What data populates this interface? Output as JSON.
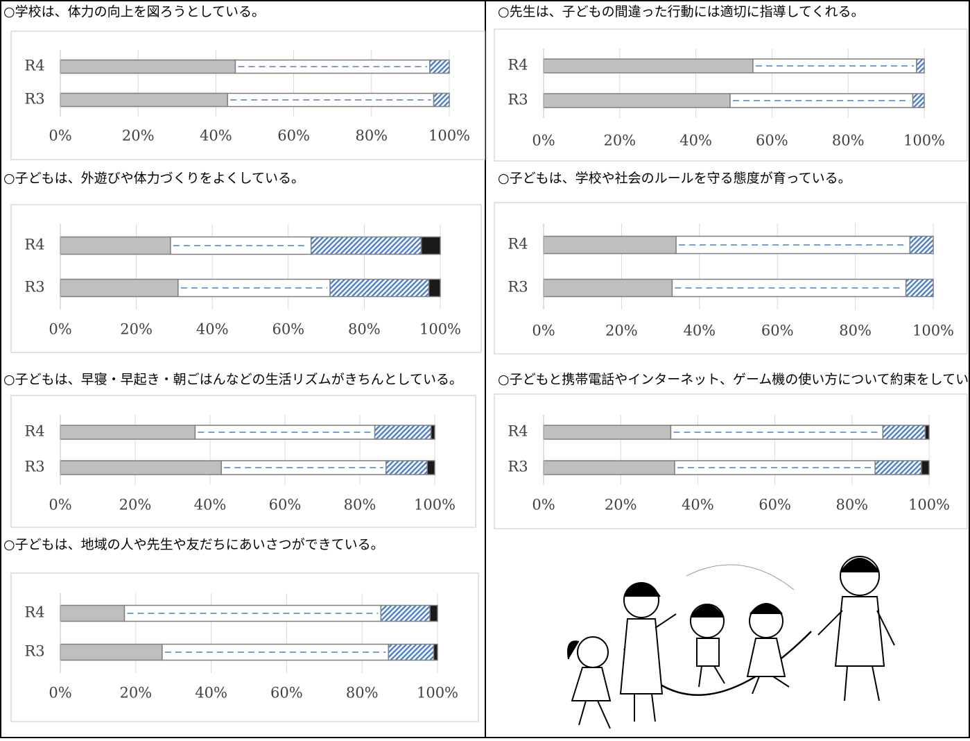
{
  "chart_data": [
    {
      "type": "stacked-bar-horizontal",
      "title": "○学校は、体力の向上を図ろうとしている。",
      "categories": [
        "R4",
        "R3"
      ],
      "series": [
        {
          "color": "#bfbfbf",
          "pattern": "solid",
          "values": [
            45,
            43
          ]
        },
        {
          "color": "#4a7ec9",
          "pattern": "dashed",
          "values": [
            50,
            53
          ]
        },
        {
          "color": "#4a7ec9",
          "pattern": "hatched",
          "values": [
            5,
            4
          ]
        },
        {
          "color": "#1a1a1a",
          "pattern": "solid",
          "values": [
            0,
            0
          ]
        }
      ],
      "xlim": [
        0,
        100
      ],
      "xticks": [
        {
          "value": 0,
          "label": "0%"
        },
        {
          "value": 20,
          "label": "20%"
        },
        {
          "value": 40,
          "label": "40%"
        },
        {
          "value": 60,
          "label": "60%"
        },
        {
          "value": 80,
          "label": "80%"
        },
        {
          "value": 100,
          "label": "100%"
        }
      ],
      "grid": true
    },
    {
      "type": "stacked-bar-horizontal",
      "title": "○先生は、子どもの間違った行動には適切に指導してくれる。",
      "categories": [
        "R4",
        "R3"
      ],
      "series": [
        {
          "color": "#bfbfbf",
          "pattern": "solid",
          "values": [
            55,
            49
          ]
        },
        {
          "color": "#4a7ec9",
          "pattern": "dashed",
          "values": [
            43,
            48
          ]
        },
        {
          "color": "#4a7ec9",
          "pattern": "hatched",
          "values": [
            2,
            3
          ]
        },
        {
          "color": "#1a1a1a",
          "pattern": "solid",
          "values": [
            0,
            0
          ]
        }
      ],
      "xlim": [
        0,
        100
      ],
      "xticks": [
        {
          "value": 0,
          "label": "0%"
        },
        {
          "value": 20,
          "label": "20%"
        },
        {
          "value": 40,
          "label": "40%"
        },
        {
          "value": 60,
          "label": "60%"
        },
        {
          "value": 80,
          "label": "80%"
        },
        {
          "value": 100,
          "label": "100%"
        }
      ],
      "grid": true
    },
    {
      "type": "stacked-bar-horizontal",
      "title": "○子どもは、外遊びや体力づくりをよくしている。",
      "categories": [
        "R4",
        "R3"
      ],
      "series": [
        {
          "color": "#bfbfbf",
          "pattern": "solid",
          "values": [
            29,
            31
          ]
        },
        {
          "color": "#4a7ec9",
          "pattern": "dashed",
          "values": [
            37,
            40
          ]
        },
        {
          "color": "#4a7ec9",
          "pattern": "hatched",
          "values": [
            29,
            26
          ]
        },
        {
          "color": "#1a1a1a",
          "pattern": "solid",
          "values": [
            5,
            3
          ]
        }
      ],
      "xlim": [
        0,
        100
      ],
      "xticks": [
        {
          "value": 0,
          "label": "0%"
        },
        {
          "value": 20,
          "label": "20%"
        },
        {
          "value": 40,
          "label": "40%"
        },
        {
          "value": 60,
          "label": "60%"
        },
        {
          "value": 80,
          "label": "80%"
        },
        {
          "value": 100,
          "label": "100%"
        }
      ],
      "grid": true
    },
    {
      "type": "stacked-bar-horizontal",
      "title": "○子どもは、学校や社会のルールを守る態度が育っている。",
      "categories": [
        "R4",
        "R3"
      ],
      "series": [
        {
          "color": "#bfbfbf",
          "pattern": "solid",
          "values": [
            34,
            33
          ]
        },
        {
          "color": "#4a7ec9",
          "pattern": "dashed",
          "values": [
            60,
            60
          ]
        },
        {
          "color": "#4a7ec9",
          "pattern": "hatched",
          "values": [
            6,
            7
          ]
        },
        {
          "color": "#1a1a1a",
          "pattern": "solid",
          "values": [
            0,
            0
          ]
        }
      ],
      "xlim": [
        0,
        100
      ],
      "xticks": [
        {
          "value": 0,
          "label": "0%"
        },
        {
          "value": 20,
          "label": "20%"
        },
        {
          "value": 40,
          "label": "40%"
        },
        {
          "value": 60,
          "label": "60%"
        },
        {
          "value": 80,
          "label": "80%"
        },
        {
          "value": 100,
          "label": "100%"
        }
      ],
      "grid": true
    },
    {
      "type": "stacked-bar-horizontal",
      "title": "○子どもは、早寝・早起き・朝ごはんなどの生活リズムがきちんとしている。",
      "categories": [
        "R4",
        "R3"
      ],
      "series": [
        {
          "color": "#bfbfbf",
          "pattern": "solid",
          "values": [
            36,
            43
          ]
        },
        {
          "color": "#4a7ec9",
          "pattern": "dashed",
          "values": [
            48,
            44
          ]
        },
        {
          "color": "#4a7ec9",
          "pattern": "hatched",
          "values": [
            15,
            11
          ]
        },
        {
          "color": "#1a1a1a",
          "pattern": "solid",
          "values": [
            1,
            2
          ]
        }
      ],
      "xlim": [
        0,
        100
      ],
      "xticks": [
        {
          "value": 0,
          "label": "0%"
        },
        {
          "value": 20,
          "label": "20%"
        },
        {
          "value": 40,
          "label": "40%"
        },
        {
          "value": 60,
          "label": "60%"
        },
        {
          "value": 80,
          "label": "80%"
        },
        {
          "value": 100,
          "label": "100%"
        }
      ],
      "grid": true
    },
    {
      "type": "stacked-bar-horizontal",
      "title": "○子どもと携帯電話やインターネット、ゲーム機の使い方について約束をしている。",
      "categories": [
        "R4",
        "R3"
      ],
      "series": [
        {
          "color": "#bfbfbf",
          "pattern": "solid",
          "values": [
            33,
            34
          ]
        },
        {
          "color": "#4a7ec9",
          "pattern": "dashed",
          "values": [
            55,
            52
          ]
        },
        {
          "color": "#4a7ec9",
          "pattern": "hatched",
          "values": [
            11,
            12
          ]
        },
        {
          "color": "#1a1a1a",
          "pattern": "solid",
          "values": [
            1,
            2
          ]
        }
      ],
      "xlim": [
        0,
        100
      ],
      "xticks": [
        {
          "value": 0,
          "label": "0%"
        },
        {
          "value": 20,
          "label": "20%"
        },
        {
          "value": 40,
          "label": "40%"
        },
        {
          "value": 60,
          "label": "60%"
        },
        {
          "value": 80,
          "label": "80%"
        },
        {
          "value": 100,
          "label": "100%"
        }
      ],
      "grid": true
    },
    {
      "type": "stacked-bar-horizontal",
      "title": "○子どもは、地域の人や先生や友だちにあいさつができている。",
      "categories": [
        "R4",
        "R3"
      ],
      "series": [
        {
          "color": "#bfbfbf",
          "pattern": "solid",
          "values": [
            17,
            27
          ]
        },
        {
          "color": "#4a7ec9",
          "pattern": "dashed",
          "values": [
            68,
            60
          ]
        },
        {
          "color": "#4a7ec9",
          "pattern": "hatched",
          "values": [
            13,
            12
          ]
        },
        {
          "color": "#1a1a1a",
          "pattern": "solid",
          "values": [
            2,
            1
          ]
        }
      ],
      "xlim": [
        0,
        100
      ],
      "xticks": [
        {
          "value": 0,
          "label": "0%"
        },
        {
          "value": 20,
          "label": "20%"
        },
        {
          "value": 40,
          "label": "40%"
        },
        {
          "value": 60,
          "label": "60%"
        },
        {
          "value": 80,
          "label": "80%"
        },
        {
          "value": 100,
          "label": "100%"
        }
      ],
      "grid": true
    }
  ]
}
